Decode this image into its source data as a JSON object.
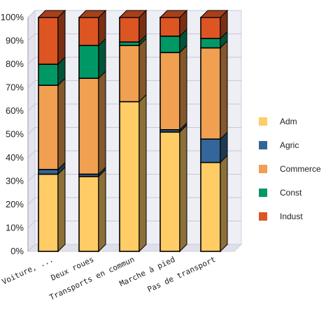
{
  "chart_data": {
    "type": "bar",
    "stacked": true,
    "percent": true,
    "three_d": true,
    "categories": [
      "Voiture, ...",
      "Deux roues",
      "Transports en commun",
      "Marche à pied",
      "Pas de transport"
    ],
    "series": [
      {
        "name": "Adm",
        "color": "#ffcc66",
        "values": [
          33,
          32,
          64,
          51,
          38
        ]
      },
      {
        "name": "Agric",
        "color": "#336699",
        "values": [
          2,
          1,
          0,
          1,
          10
        ]
      },
      {
        "name": "Commerce",
        "color": "#f0a050",
        "values": [
          36,
          41,
          24,
          33,
          39
        ]
      },
      {
        "name": "Const",
        "color": "#009966",
        "values": [
          9,
          14,
          1.5,
          7,
          4
        ]
      },
      {
        "name": "Indust",
        "color": "#dd5522",
        "values": [
          20,
          12,
          10.5,
          8,
          9
        ]
      }
    ],
    "y_ticks": [
      "0%",
      "10%",
      "20%",
      "30%",
      "40%",
      "50%",
      "60%",
      "70%",
      "80%",
      "90%",
      "100%"
    ],
    "ylim": [
      0,
      100
    ],
    "grid": true,
    "legend_position": "right"
  }
}
